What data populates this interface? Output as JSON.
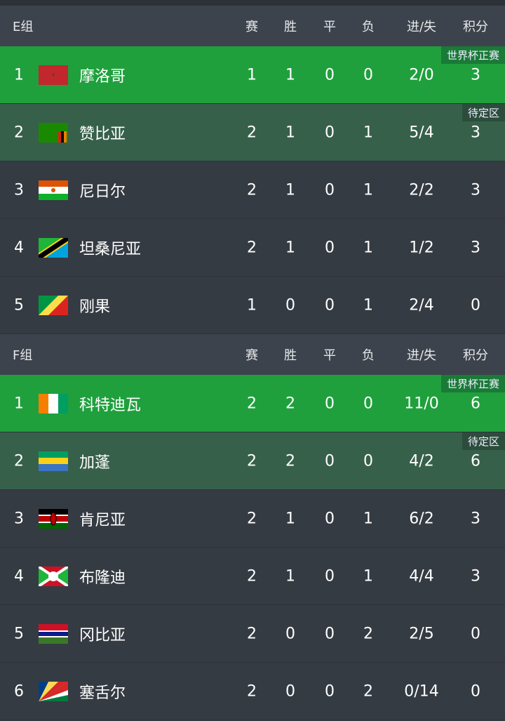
{
  "columns": [
    "赛",
    "胜",
    "平",
    "负",
    "进/失",
    "积分"
  ],
  "groups": [
    {
      "name": "E组",
      "rows": [
        {
          "rank": "1",
          "team": "摩洛哥",
          "flag": "morocco",
          "p": "1",
          "w": "1",
          "d": "0",
          "l": "0",
          "gd": "2/0",
          "pts": "3",
          "tag": "世界杯正赛",
          "status": "qualified"
        },
        {
          "rank": "2",
          "team": "赞比亚",
          "flag": "zambia",
          "p": "2",
          "w": "1",
          "d": "0",
          "l": "1",
          "gd": "5/4",
          "pts": "3",
          "tag": "待定区",
          "status": "pending"
        },
        {
          "rank": "3",
          "team": "尼日尔",
          "flag": "niger",
          "p": "2",
          "w": "1",
          "d": "0",
          "l": "1",
          "gd": "2/2",
          "pts": "3"
        },
        {
          "rank": "4",
          "team": "坦桑尼亚",
          "flag": "tanzania",
          "p": "2",
          "w": "1",
          "d": "0",
          "l": "1",
          "gd": "1/2",
          "pts": "3"
        },
        {
          "rank": "5",
          "team": "刚果",
          "flag": "congo",
          "p": "1",
          "w": "0",
          "d": "0",
          "l": "1",
          "gd": "2/4",
          "pts": "0"
        }
      ]
    },
    {
      "name": "F组",
      "rows": [
        {
          "rank": "1",
          "team": "科特迪瓦",
          "flag": "ivory-coast",
          "p": "2",
          "w": "2",
          "d": "0",
          "l": "0",
          "gd": "11/0",
          "pts": "6",
          "tag": "世界杯正赛",
          "status": "qualified"
        },
        {
          "rank": "2",
          "team": "加蓬",
          "flag": "gabon",
          "p": "2",
          "w": "2",
          "d": "0",
          "l": "0",
          "gd": "4/2",
          "pts": "6",
          "tag": "待定区",
          "status": "pending"
        },
        {
          "rank": "3",
          "team": "肯尼亚",
          "flag": "kenya",
          "p": "2",
          "w": "1",
          "d": "0",
          "l": "1",
          "gd": "6/2",
          "pts": "3"
        },
        {
          "rank": "4",
          "team": "布隆迪",
          "flag": "burundi",
          "p": "2",
          "w": "1",
          "d": "0",
          "l": "1",
          "gd": "4/4",
          "pts": "3"
        },
        {
          "rank": "5",
          "team": "冈比亚",
          "flag": "gambia",
          "p": "2",
          "w": "0",
          "d": "0",
          "l": "2",
          "gd": "2/5",
          "pts": "0"
        },
        {
          "rank": "6",
          "team": "塞舌尔",
          "flag": "seychelles",
          "p": "2",
          "w": "0",
          "d": "0",
          "l": "2",
          "gd": "0/14",
          "pts": "0"
        }
      ]
    }
  ],
  "colors": {
    "qualified": "#1fa03d",
    "pending": "#37604a",
    "background": "#353b43"
  }
}
